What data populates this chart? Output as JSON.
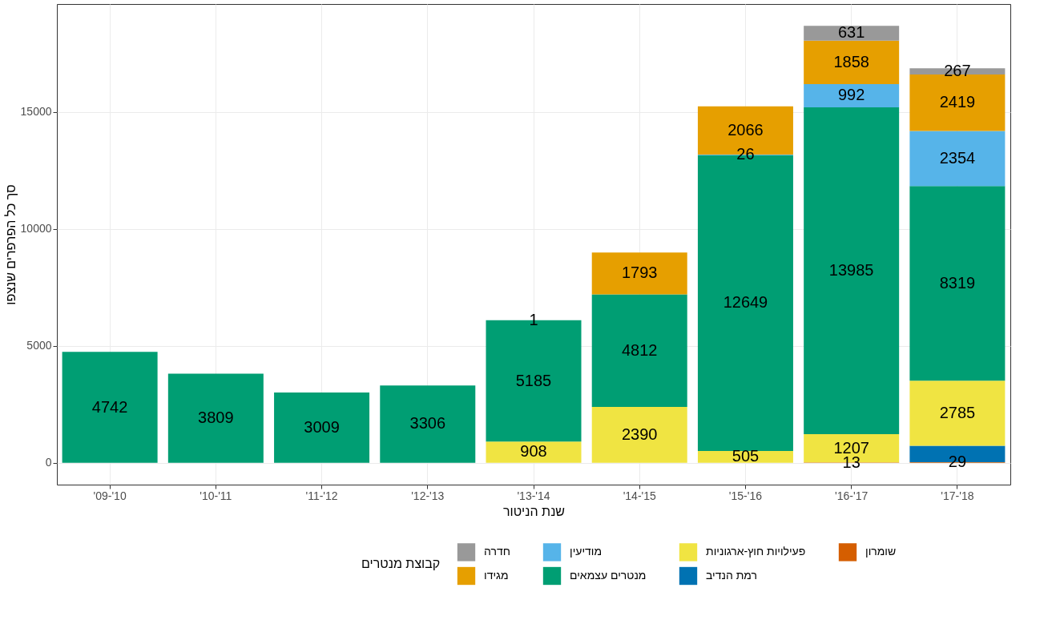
{
  "chart_data": {
    "type": "bar",
    "stacked": true,
    "xlabel": "שנת הניטור",
    "ylabel": "סך כל הפרפרים שנצפו",
    "legend_title": "קבוצת מנטרים",
    "categories": [
      "'09-'10",
      "'10-'11",
      "'11-'12",
      "'12-'13",
      "'13-'14",
      "'14-'15",
      "'15-'16",
      "'16-'17",
      "'17-'18"
    ],
    "ylim": [
      -934,
      19620
    ],
    "yticks": [
      0,
      5000,
      10000,
      15000
    ],
    "grid": true,
    "legend": "bottom",
    "series": [
      {
        "name": "שומרון",
        "color": "#d55e00",
        "values": [
          null,
          null,
          null,
          null,
          null,
          null,
          null,
          13,
          29
        ],
        "value_labels": [
          null,
          null,
          null,
          null,
          null,
          null,
          null,
          "13",
          "29"
        ]
      },
      {
        "name": "רמת הנדיב",
        "color": "#0072b2",
        "values": [
          null,
          null,
          null,
          null,
          null,
          null,
          null,
          null,
          700
        ],
        "value_labels": [
          null,
          null,
          null,
          null,
          null,
          null,
          null,
          null,
          null
        ]
      },
      {
        "name": "פעילויות חוץ-ארגוניות",
        "color": "#f0e442",
        "values": [
          null,
          null,
          null,
          null,
          908,
          2390,
          505,
          1207,
          2785
        ],
        "value_labels": [
          null,
          null,
          null,
          null,
          "908",
          "2390",
          "505",
          "1207",
          "2785"
        ]
      },
      {
        "name": "מנטרים עצמאים",
        "color": "#009e73",
        "values": [
          4742,
          3809,
          3009,
          3306,
          5185,
          4812,
          12649,
          13985,
          8319
        ],
        "value_labels": [
          "4742",
          "3809",
          "3009",
          "3306",
          "5185",
          "4812",
          "12649",
          "13985",
          "8319"
        ]
      },
      {
        "name": "מודיעין",
        "color": "#56b4e9",
        "values": [
          null,
          null,
          null,
          null,
          1,
          null,
          26,
          992,
          2354
        ],
        "value_labels": [
          null,
          null,
          null,
          null,
          "1",
          null,
          "26",
          "992",
          "2354"
        ]
      },
      {
        "name": "מגידו",
        "color": "#e69f00",
        "values": [
          null,
          null,
          null,
          null,
          null,
          1793,
          2066,
          1858,
          2419
        ],
        "value_labels": [
          null,
          null,
          null,
          null,
          null,
          "1793",
          "2066",
          "1858",
          "2419"
        ]
      },
      {
        "name": "חדרה",
        "color": "#999999",
        "values": [
          null,
          null,
          null,
          null,
          null,
          null,
          null,
          631,
          267
        ],
        "value_labels": [
          null,
          null,
          null,
          null,
          null,
          null,
          null,
          "631",
          "267"
        ]
      }
    ]
  }
}
